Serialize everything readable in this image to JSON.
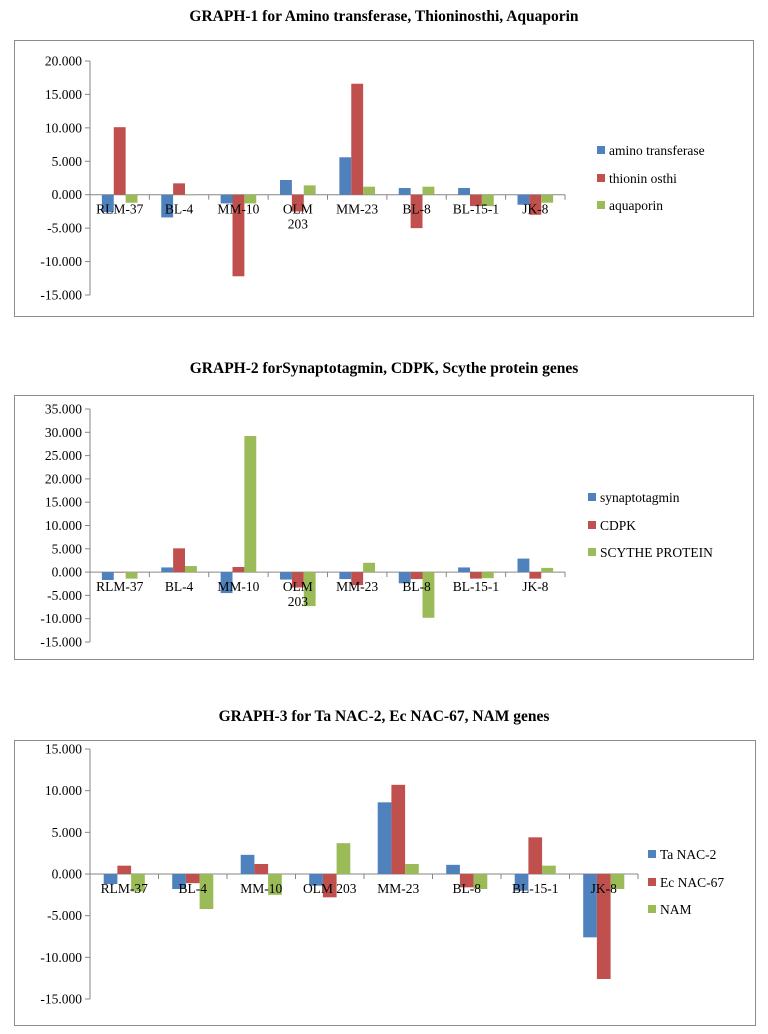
{
  "chart_data": [
    {
      "type": "bar",
      "title": "GRAPH-1 for Amino transferase, Thioninosthi, Aquaporin",
      "categories": [
        [
          "RLM-37"
        ],
        [
          "BL-4"
        ],
        [
          "MM-10"
        ],
        [
          "OLM",
          "203"
        ],
        [
          "MM-23"
        ],
        [
          "BL-8"
        ],
        [
          "BL-15-1"
        ],
        [
          "JK-8"
        ]
      ],
      "series": [
        {
          "name": "amino transferase",
          "color": "#4f81bd",
          "values": [
            -2.6,
            -3.4,
            -1.3,
            2.2,
            5.6,
            1.0,
            1.0,
            -1.5
          ]
        },
        {
          "name": "thionin osthi",
          "color": "#c0504d",
          "values": [
            10.1,
            1.7,
            -12.2,
            -2.5,
            16.6,
            -5.0,
            -1.7,
            -3.0
          ]
        },
        {
          "name": "aquaporin",
          "color": "#9bbb59",
          "values": [
            -1.2,
            0.0,
            -1.3,
            1.4,
            1.2,
            1.2,
            -1.7,
            -1.2
          ]
        }
      ],
      "ylim": [
        -15,
        20
      ],
      "yticks": [
        "20.000",
        "15.000",
        "10.000",
        "5.000",
        "0.000",
        "-5.000",
        "-10.000",
        "-15.000"
      ],
      "grid": false,
      "legend": "right"
    },
    {
      "type": "bar",
      "title": "GRAPH-2  forSynaptotagmin, CDPK, Scythe protein genes",
      "categories": [
        [
          "RLM-37"
        ],
        [
          "BL-4"
        ],
        [
          "MM-10"
        ],
        [
          "OLM",
          "203"
        ],
        [
          "MM-23"
        ],
        [
          "BL-8"
        ],
        [
          "BL-15-1"
        ],
        [
          "JK-8"
        ]
      ],
      "series": [
        {
          "name": "synaptotagmin",
          "color": "#4f81bd",
          "values": [
            -1.7,
            1.0,
            -4.5,
            -1.6,
            -1.5,
            -2.4,
            1.0,
            2.9
          ]
        },
        {
          "name": "CDPK",
          "color": "#c0504d",
          "values": [
            0.0,
            5.1,
            1.1,
            -3.3,
            -2.8,
            -1.5,
            -1.4,
            -1.4
          ]
        },
        {
          "name": "SCYTHE PROTEIN",
          "color": "#9bbb59",
          "values": [
            -1.4,
            1.3,
            29.2,
            -7.3,
            2.0,
            -9.8,
            -1.3,
            0.9
          ]
        }
      ],
      "ylim": [
        -15,
        35
      ],
      "yticks": [
        "35.000",
        "30.000",
        "25.000",
        "20.000",
        "15.000",
        "10.000",
        "5.000",
        "0.000",
        "-5.000",
        "-10.000",
        "-15.000"
      ],
      "grid": false,
      "legend": "right"
    },
    {
      "type": "bar",
      "title": "GRAPH-3 for Ta NAC-2, Ec NAC-67, NAM genes",
      "categories": [
        [
          "RLM-37"
        ],
        [
          "BL-4"
        ],
        [
          "MM-10"
        ],
        [
          "OLM 203"
        ],
        [
          "MM-23"
        ],
        [
          "BL-8"
        ],
        [
          "BL-15-1"
        ],
        [
          "JK-8"
        ]
      ],
      "series": [
        {
          "name": "Ta NAC-2",
          "color": "#4f81bd",
          "values": [
            -1.2,
            -1.8,
            2.3,
            -1.4,
            8.6,
            1.1,
            -2.0,
            -7.6
          ]
        },
        {
          "name": "Ec NAC-67",
          "color": "#c0504d",
          "values": [
            1.0,
            -1.1,
            1.2,
            -2.8,
            10.7,
            -1.6,
            4.4,
            -12.6
          ]
        },
        {
          "name": "NAM",
          "color": "#9bbb59",
          "values": [
            -2.1,
            -4.2,
            -2.5,
            3.7,
            1.2,
            -1.8,
            1.0,
            -1.8
          ]
        }
      ],
      "ylim": [
        -15,
        15
      ],
      "yticks": [
        "15.000",
        "10.000",
        "5.000",
        "0.000",
        "-5.000",
        "-10.000",
        "-15.000"
      ],
      "grid": false,
      "legend": "right"
    }
  ]
}
